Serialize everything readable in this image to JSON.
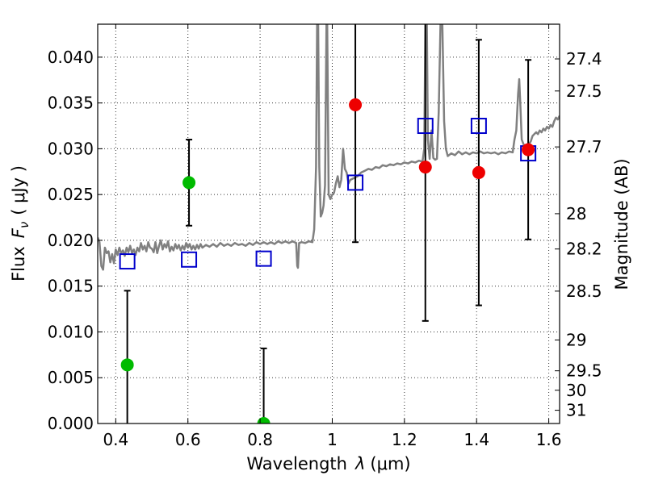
{
  "chart_data": {
    "type": "scatter",
    "xlabel_text": "Wavelength",
    "xlabel_symbol": "λ",
    "xlabel_unit": "(μm)",
    "ylabel_text": "Flux",
    "ylabel_symbol": "F",
    "ylabel_subscript": "ν",
    "ylabel_unit": "( μJy )",
    "y2label": "Magnitude (AB)",
    "xlim": [
      0.35,
      1.63
    ],
    "ylim": [
      0.0,
      0.0436
    ],
    "grid": true,
    "x_ticks": [
      {
        "value": 0.4,
        "label": "0.4"
      },
      {
        "value": 0.6,
        "label": "0.6"
      },
      {
        "value": 0.8,
        "label": "0.8"
      },
      {
        "value": 1.0,
        "label": "1"
      },
      {
        "value": 1.2,
        "label": "1.2"
      },
      {
        "value": 1.4,
        "label": "1.4"
      },
      {
        "value": 1.6,
        "label": "1.6"
      }
    ],
    "y_ticks": [
      {
        "value": 0.0,
        "label": "0.000"
      },
      {
        "value": 0.005,
        "label": "0.005"
      },
      {
        "value": 0.01,
        "label": "0.010"
      },
      {
        "value": 0.015,
        "label": "0.015"
      },
      {
        "value": 0.02,
        "label": "0.020"
      },
      {
        "value": 0.025,
        "label": "0.025"
      },
      {
        "value": 0.03,
        "label": "0.030"
      },
      {
        "value": 0.035,
        "label": "0.035"
      },
      {
        "value": 0.04,
        "label": "0.040"
      }
    ],
    "mag_ticks": [
      {
        "value": 27.4,
        "label": "27.4"
      },
      {
        "value": 27.5,
        "label": "27.5"
      },
      {
        "value": 27.7,
        "label": "27.7"
      },
      {
        "value": 28.0,
        "label": "28"
      },
      {
        "value": 28.2,
        "label": "28.2"
      },
      {
        "value": 28.5,
        "label": "28.5"
      },
      {
        "value": 29.0,
        "label": "29"
      },
      {
        "value": 29.5,
        "label": "29.5"
      },
      {
        "value": 30.0,
        "label": "30"
      },
      {
        "value": 31.0,
        "label": "31"
      }
    ],
    "colors": {
      "spectrum": "#808080",
      "green": "#00bb00",
      "red": "#ee0000",
      "model": "#0000cc",
      "errorbar": "#000000"
    },
    "series": [
      {
        "name": "spectrum",
        "type": "line",
        "points": [
          [
            0.35,
            0.0203
          ],
          [
            0.355,
            0.0198
          ],
          [
            0.36,
            0.0172
          ],
          [
            0.365,
            0.0168
          ],
          [
            0.37,
            0.0192
          ],
          [
            0.375,
            0.0186
          ],
          [
            0.38,
            0.0188
          ],
          [
            0.385,
            0.0176
          ],
          [
            0.39,
            0.0185
          ],
          [
            0.395,
            0.0175
          ],
          [
            0.4,
            0.019
          ],
          [
            0.405,
            0.0184
          ],
          [
            0.41,
            0.0192
          ],
          [
            0.415,
            0.0186
          ],
          [
            0.42,
            0.0189
          ],
          [
            0.425,
            0.0183
          ],
          [
            0.43,
            0.0192
          ],
          [
            0.435,
            0.0187
          ],
          [
            0.44,
            0.0194
          ],
          [
            0.445,
            0.0186
          ],
          [
            0.45,
            0.019
          ],
          [
            0.455,
            0.0184
          ],
          [
            0.46,
            0.0192
          ],
          [
            0.465,
            0.0188
          ],
          [
            0.47,
            0.0197
          ],
          [
            0.475,
            0.019
          ],
          [
            0.48,
            0.0194
          ],
          [
            0.485,
            0.0188
          ],
          [
            0.49,
            0.0198
          ],
          [
            0.495,
            0.0192
          ],
          [
            0.5,
            0.0191
          ],
          [
            0.505,
            0.0187
          ],
          [
            0.51,
            0.0198
          ],
          [
            0.515,
            0.0186
          ],
          [
            0.52,
            0.0194
          ],
          [
            0.525,
            0.02
          ],
          [
            0.53,
            0.019
          ],
          [
            0.535,
            0.0196
          ],
          [
            0.54,
            0.0192
          ],
          [
            0.545,
            0.0199
          ],
          [
            0.55,
            0.0188
          ],
          [
            0.555,
            0.0193
          ],
          [
            0.56,
            0.0189
          ],
          [
            0.565,
            0.0196
          ],
          [
            0.57,
            0.0191
          ],
          [
            0.575,
            0.0195
          ],
          [
            0.58,
            0.0189
          ],
          [
            0.585,
            0.0194
          ],
          [
            0.59,
            0.019
          ],
          [
            0.595,
            0.0197
          ],
          [
            0.6,
            0.0192
          ],
          [
            0.605,
            0.0196
          ],
          [
            0.61,
            0.019
          ],
          [
            0.615,
            0.0194
          ],
          [
            0.62,
            0.019
          ],
          [
            0.625,
            0.0195
          ],
          [
            0.63,
            0.0191
          ],
          [
            0.635,
            0.0196
          ],
          [
            0.64,
            0.0192
          ],
          [
            0.65,
            0.0195
          ],
          [
            0.66,
            0.0193
          ],
          [
            0.67,
            0.0196
          ],
          [
            0.68,
            0.0193
          ],
          [
            0.69,
            0.0197
          ],
          [
            0.7,
            0.0194
          ],
          [
            0.71,
            0.0196
          ],
          [
            0.72,
            0.0194
          ],
          [
            0.73,
            0.0197
          ],
          [
            0.74,
            0.0195
          ],
          [
            0.75,
            0.0196
          ],
          [
            0.76,
            0.0194
          ],
          [
            0.77,
            0.0197
          ],
          [
            0.78,
            0.0195
          ],
          [
            0.79,
            0.0198
          ],
          [
            0.8,
            0.0196
          ],
          [
            0.81,
            0.0198
          ],
          [
            0.82,
            0.0196
          ],
          [
            0.83,
            0.0198
          ],
          [
            0.84,
            0.0196
          ],
          [
            0.85,
            0.0199
          ],
          [
            0.86,
            0.0197
          ],
          [
            0.87,
            0.0199
          ],
          [
            0.88,
            0.0197
          ],
          [
            0.89,
            0.0199
          ],
          [
            0.9,
            0.0197
          ],
          [
            0.903,
            0.0172
          ],
          [
            0.905,
            0.017
          ],
          [
            0.908,
            0.0197
          ],
          [
            0.915,
            0.0198
          ],
          [
            0.925,
            0.0197
          ],
          [
            0.935,
            0.0199
          ],
          [
            0.945,
            0.0198
          ],
          [
            0.95,
            0.0212
          ],
          [
            0.955,
            0.028
          ],
          [
            0.958,
            0.0436
          ],
          [
            0.961,
            0.0436
          ],
          [
            0.964,
            0.028
          ],
          [
            0.968,
            0.0226
          ],
          [
            0.972,
            0.023
          ],
          [
            0.976,
            0.0238
          ],
          [
            0.98,
            0.026
          ],
          [
            0.984,
            0.0436
          ],
          [
            0.986,
            0.0436
          ],
          [
            0.99,
            0.025
          ],
          [
            0.995,
            0.0245
          ],
          [
            1.0,
            0.025
          ],
          [
            1.005,
            0.0252
          ],
          [
            1.01,
            0.0262
          ],
          [
            1.015,
            0.027
          ],
          [
            1.02,
            0.0258
          ],
          [
            1.025,
            0.0266
          ],
          [
            1.03,
            0.03
          ],
          [
            1.035,
            0.0278
          ],
          [
            1.04,
            0.0274
          ],
          [
            1.045,
            0.0262
          ],
          [
            1.05,
            0.0266
          ],
          [
            1.06,
            0.0268
          ],
          [
            1.07,
            0.027
          ],
          [
            1.08,
            0.0274
          ],
          [
            1.09,
            0.0276
          ],
          [
            1.1,
            0.0278
          ],
          [
            1.11,
            0.0277
          ],
          [
            1.12,
            0.028
          ],
          [
            1.13,
            0.0279
          ],
          [
            1.14,
            0.0282
          ],
          [
            1.15,
            0.0281
          ],
          [
            1.16,
            0.0283
          ],
          [
            1.17,
            0.0282
          ],
          [
            1.18,
            0.0284
          ],
          [
            1.19,
            0.0283
          ],
          [
            1.2,
            0.0285
          ],
          [
            1.21,
            0.0284
          ],
          [
            1.22,
            0.0286
          ],
          [
            1.23,
            0.0285
          ],
          [
            1.24,
            0.0287
          ],
          [
            1.25,
            0.0286
          ],
          [
            1.255,
            0.03
          ],
          [
            1.258,
            0.0436
          ],
          [
            1.262,
            0.0436
          ],
          [
            1.265,
            0.031
          ],
          [
            1.27,
            0.0289
          ],
          [
            1.275,
            0.032
          ],
          [
            1.28,
            0.029
          ],
          [
            1.285,
            0.0288
          ],
          [
            1.29,
            0.0289
          ],
          [
            1.295,
            0.034
          ],
          [
            1.3,
            0.0436
          ],
          [
            1.305,
            0.0436
          ],
          [
            1.31,
            0.033
          ],
          [
            1.315,
            0.03
          ],
          [
            1.32,
            0.0292
          ],
          [
            1.33,
            0.0295
          ],
          [
            1.34,
            0.0293
          ],
          [
            1.35,
            0.0297
          ],
          [
            1.36,
            0.0294
          ],
          [
            1.37,
            0.0296
          ],
          [
            1.38,
            0.0294
          ],
          [
            1.39,
            0.0296
          ],
          [
            1.4,
            0.0295
          ],
          [
            1.41,
            0.0297
          ],
          [
            1.42,
            0.0295
          ],
          [
            1.43,
            0.0296
          ],
          [
            1.44,
            0.0295
          ],
          [
            1.45,
            0.0296
          ],
          [
            1.46,
            0.0294
          ],
          [
            1.47,
            0.0296
          ],
          [
            1.48,
            0.0295
          ],
          [
            1.49,
            0.0297
          ],
          [
            1.5,
            0.0296
          ],
          [
            1.505,
            0.031
          ],
          [
            1.51,
            0.032
          ],
          [
            1.515,
            0.036
          ],
          [
            1.518,
            0.0376
          ],
          [
            1.521,
            0.035
          ],
          [
            1.525,
            0.031
          ],
          [
            1.53,
            0.0305
          ],
          [
            1.535,
            0.0302
          ],
          [
            1.54,
            0.0303
          ],
          [
            1.545,
            0.0305
          ],
          [
            1.55,
            0.0308
          ],
          [
            1.555,
            0.0314
          ],
          [
            1.56,
            0.0316
          ],
          [
            1.565,
            0.0318
          ],
          [
            1.57,
            0.0316
          ],
          [
            1.575,
            0.032
          ],
          [
            1.58,
            0.0318
          ],
          [
            1.585,
            0.0322
          ],
          [
            1.59,
            0.032
          ],
          [
            1.595,
            0.0324
          ],
          [
            1.6,
            0.0322
          ],
          [
            1.605,
            0.0326
          ],
          [
            1.61,
            0.0324
          ],
          [
            1.615,
            0.033
          ],
          [
            1.62,
            0.0334
          ],
          [
            1.625,
            0.0332
          ],
          [
            1.63,
            0.0336
          ]
        ]
      },
      {
        "name": "observed (green)",
        "type": "scatter",
        "marker": "circle",
        "points": [
          {
            "x": 0.432,
            "y": 0.0064,
            "err": 0.0081
          },
          {
            "x": 0.603,
            "y": 0.0263,
            "err": 0.0047
          },
          {
            "x": 0.81,
            "y": 0.0,
            "err": 0.0082
          }
        ]
      },
      {
        "name": "observed (red)",
        "type": "scatter",
        "marker": "circle",
        "points": [
          {
            "x": 1.064,
            "y": 0.0348,
            "err": 0.015
          },
          {
            "x": 1.258,
            "y": 0.028,
            "err": 0.0168
          },
          {
            "x": 1.406,
            "y": 0.0274,
            "err": 0.0145
          },
          {
            "x": 1.543,
            "y": 0.0299,
            "err": 0.0098
          }
        ]
      },
      {
        "name": "model (blue squares)",
        "type": "scatter",
        "marker": "open-square",
        "points": [
          {
            "x": 0.432,
            "y": 0.0177
          },
          {
            "x": 0.603,
            "y": 0.0179
          },
          {
            "x": 0.81,
            "y": 0.018
          },
          {
            "x": 1.064,
            "y": 0.0263
          },
          {
            "x": 1.258,
            "y": 0.0325
          },
          {
            "x": 1.406,
            "y": 0.0325
          },
          {
            "x": 1.543,
            "y": 0.0295
          }
        ]
      }
    ]
  }
}
